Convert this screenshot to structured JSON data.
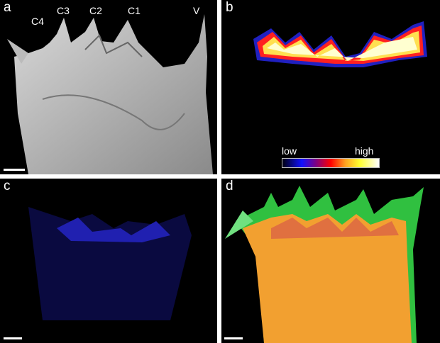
{
  "panels": {
    "a": {
      "label": "a",
      "teeth_labels": [
        "C4",
        "C3",
        "C2",
        "C1",
        "V"
      ]
    },
    "b": {
      "label": "b",
      "colorbar": {
        "low": "low",
        "high": "high",
        "colors": [
          "#000010",
          "#1010ff",
          "#ff0000",
          "#ffa020",
          "#ffff30",
          "#ffffff"
        ]
      }
    },
    "c": {
      "label": "c"
    },
    "d": {
      "label": "d"
    }
  }
}
